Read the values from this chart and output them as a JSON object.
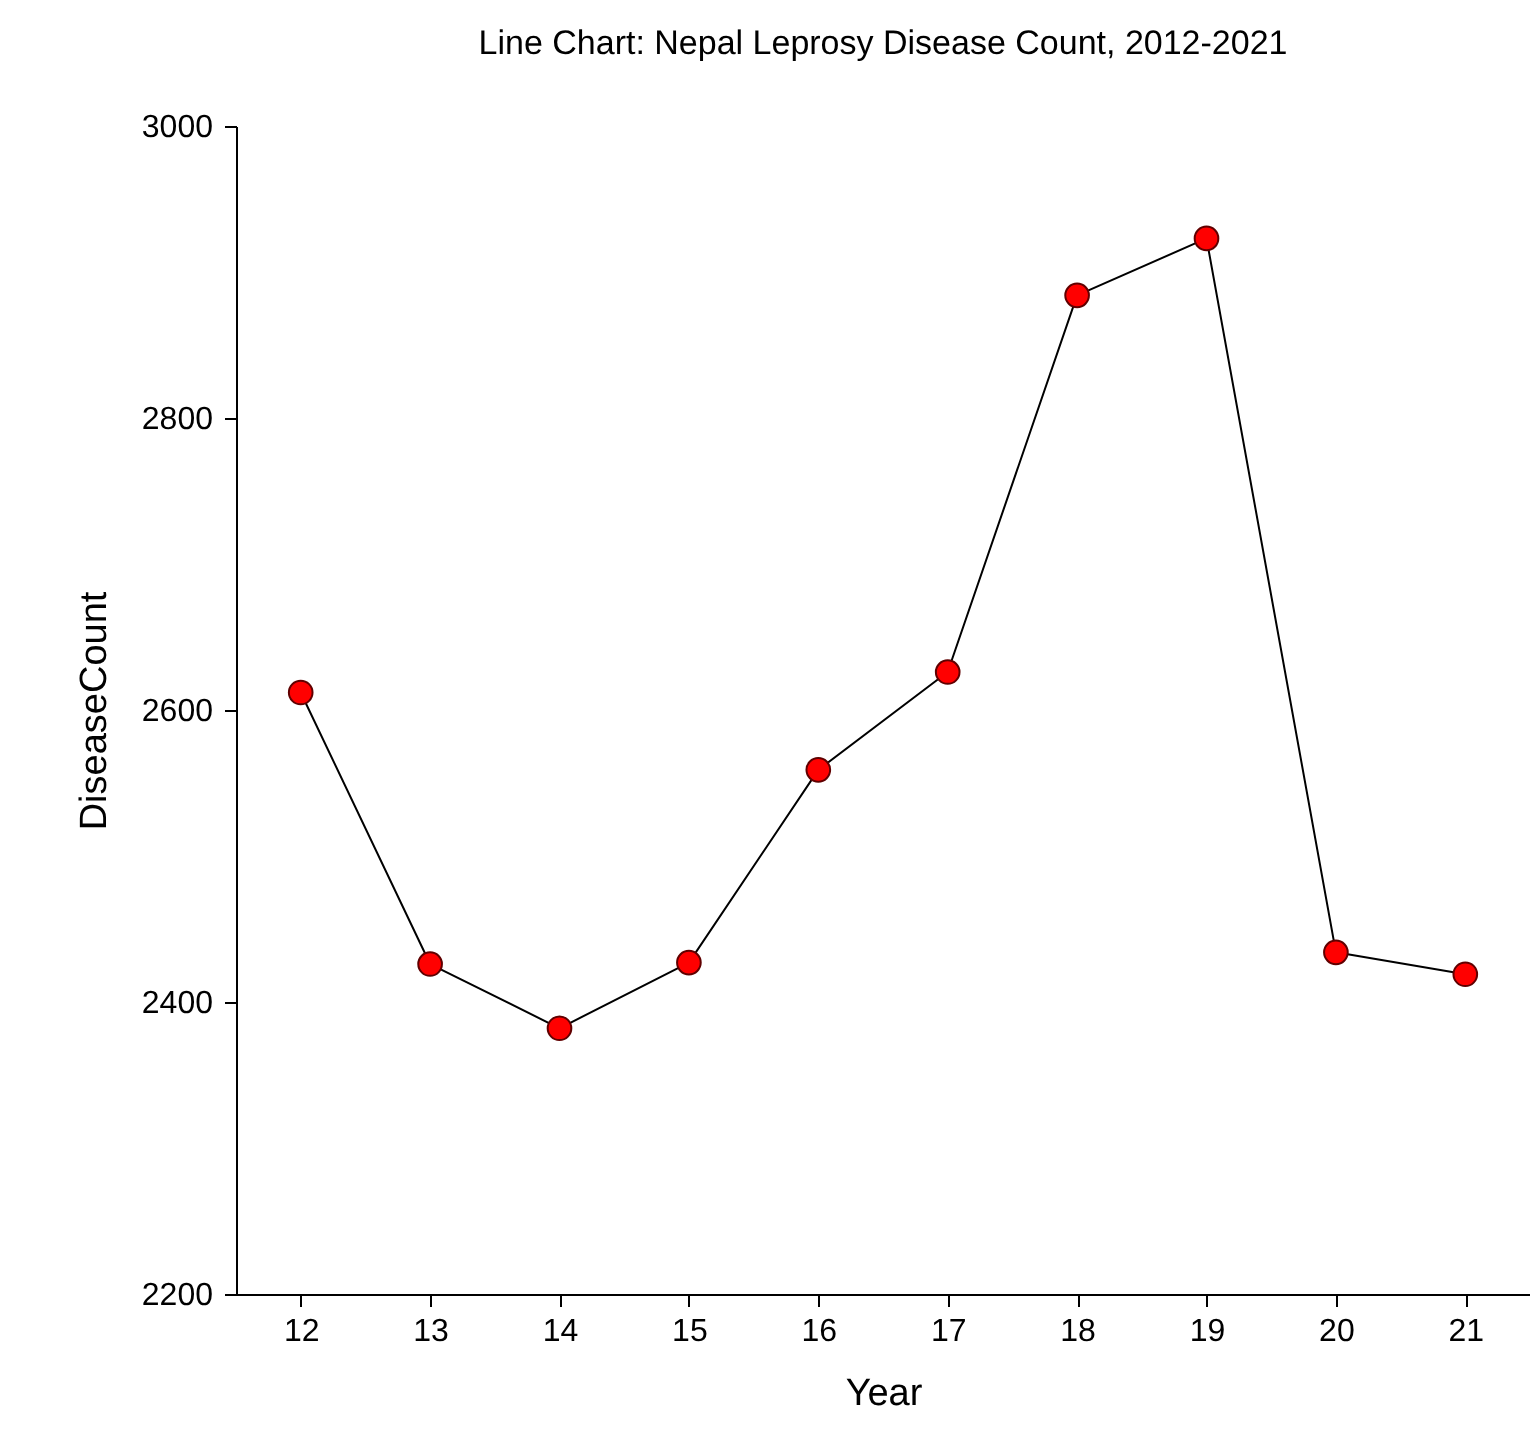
{
  "chart_data": {
    "type": "line",
    "title": "Line Chart: Nepal Leprosy Disease Count, 2012-2021",
    "xlabel": "Year",
    "ylabel": "DiseaseCount",
    "x": [
      12,
      13,
      14,
      15,
      16,
      17,
      18,
      19,
      20,
      21
    ],
    "series": [
      {
        "color": "#ff0000",
        "values": [
          2612,
          2426,
          2382,
          2427,
          2559,
          2626,
          2884,
          2923,
          2434,
          2419
        ]
      }
    ],
    "xlim": [
      11.5,
      21.5
    ],
    "xticks": [
      12,
      13,
      14,
      15,
      16,
      17,
      18,
      19,
      20,
      21
    ],
    "ylim": [
      2200,
      3000
    ],
    "yticks": [
      2200,
      2400,
      2600,
      2800,
      3000
    ],
    "grid": false,
    "marker": "circle",
    "line_style": "solid"
  }
}
